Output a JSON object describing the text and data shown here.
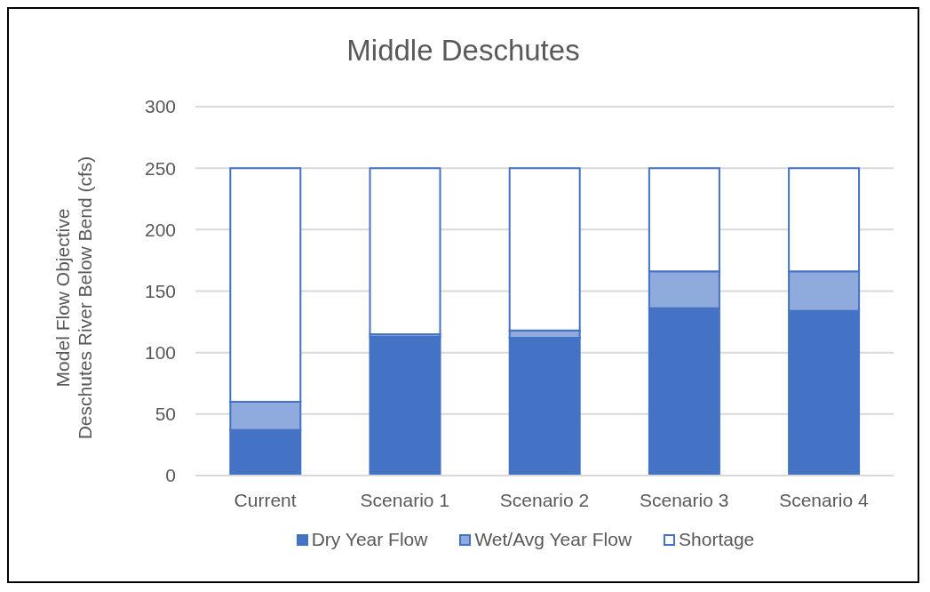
{
  "chart_data": {
    "type": "bar",
    "title": "Middle Deschutes",
    "ylabel": "Model Flow Objective\nDeschutes River Below Bend (cfs)",
    "categories": [
      "Current",
      "Scenario 1",
      "Scenario 2",
      "Scenario 3",
      "Scenario 4"
    ],
    "stacked": true,
    "series": [
      {
        "name": "Dry Year Flow",
        "color": "#4472c4",
        "values": [
          37,
          113,
          112,
          136,
          134
        ]
      },
      {
        "name": "Wet/Avg Year Flow",
        "color": "#8faadc",
        "values": [
          23,
          2,
          6,
          30,
          32
        ]
      },
      {
        "name": "Shortage",
        "color": "#ffffff",
        "values": [
          190,
          135,
          132,
          84,
          84
        ]
      }
    ],
    "ylim": [
      0,
      300
    ],
    "yticks": [
      0,
      50,
      100,
      150,
      200,
      250,
      300
    ],
    "grid": "y",
    "legend": "bottom"
  }
}
